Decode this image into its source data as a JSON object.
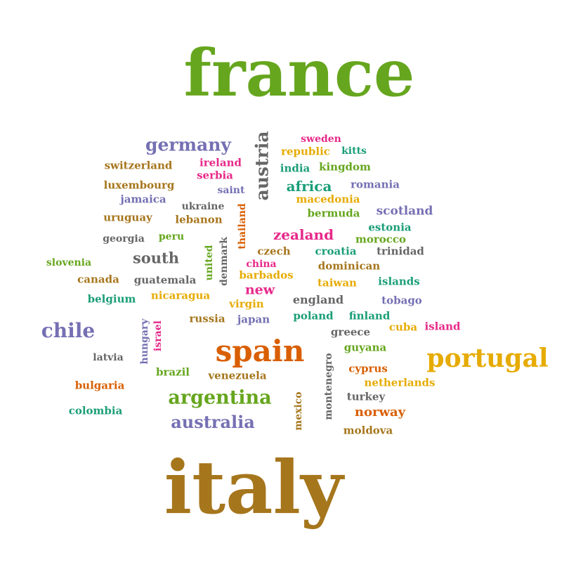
{
  "palette": {
    "green": "#66a61e",
    "olive": "#a6761d",
    "purple": "#7570b3",
    "orange": "#d95f02",
    "teal": "#1b9e77",
    "magenta": "#e7298a",
    "gold": "#e6ab02",
    "gray": "#666666"
  },
  "words": [
    {
      "text": "france",
      "color": "green"
    },
    {
      "text": "italy",
      "color": "olive"
    },
    {
      "text": "spain",
      "color": "orange"
    },
    {
      "text": "portugal",
      "color": "gold"
    },
    {
      "text": "germany",
      "color": "purple"
    },
    {
      "text": "austria",
      "color": "gray"
    },
    {
      "text": "argentina",
      "color": "green"
    },
    {
      "text": "australia",
      "color": "purple"
    },
    {
      "text": "chile",
      "color": "purple"
    },
    {
      "text": "sweden",
      "color": "magenta"
    },
    {
      "text": "republic",
      "color": "gold"
    },
    {
      "text": "kitts",
      "color": "teal"
    },
    {
      "text": "switzerland",
      "color": "olive"
    },
    {
      "text": "ireland",
      "color": "magenta"
    },
    {
      "text": "serbia",
      "color": "magenta"
    },
    {
      "text": "india",
      "color": "teal"
    },
    {
      "text": "kingdom",
      "color": "green"
    },
    {
      "text": "luxembourg",
      "color": "olive"
    },
    {
      "text": "saint",
      "color": "purple"
    },
    {
      "text": "africa",
      "color": "teal"
    },
    {
      "text": "romania",
      "color": "purple"
    },
    {
      "text": "jamaica",
      "color": "purple"
    },
    {
      "text": "macedonia",
      "color": "gold"
    },
    {
      "text": "ukraine",
      "color": "gray"
    },
    {
      "text": "bermuda",
      "color": "green"
    },
    {
      "text": "scotland",
      "color": "purple"
    },
    {
      "text": "uruguay",
      "color": "olive"
    },
    {
      "text": "lebanon",
      "color": "olive"
    },
    {
      "text": "thailand",
      "color": "orange"
    },
    {
      "text": "estonia",
      "color": "teal"
    },
    {
      "text": "zealand",
      "color": "magenta"
    },
    {
      "text": "georgia",
      "color": "gray"
    },
    {
      "text": "peru",
      "color": "green"
    },
    {
      "text": "denmark",
      "color": "gray"
    },
    {
      "text": "morocco",
      "color": "green"
    },
    {
      "text": "united",
      "color": "green"
    },
    {
      "text": "czech",
      "color": "olive"
    },
    {
      "text": "croatia",
      "color": "teal"
    },
    {
      "text": "trinidad",
      "color": "gray"
    },
    {
      "text": "south",
      "color": "gray"
    },
    {
      "text": "china",
      "color": "magenta"
    },
    {
      "text": "slovenia",
      "color": "green"
    },
    {
      "text": "dominican",
      "color": "olive"
    },
    {
      "text": "barbados",
      "color": "gold"
    },
    {
      "text": "canada",
      "color": "olive"
    },
    {
      "text": "guatemala",
      "color": "gray"
    },
    {
      "text": "new",
      "color": "magenta"
    },
    {
      "text": "taiwan",
      "color": "gold"
    },
    {
      "text": "islands",
      "color": "teal"
    },
    {
      "text": "nicaragua",
      "color": "gold"
    },
    {
      "text": "belgium",
      "color": "teal"
    },
    {
      "text": "virgin",
      "color": "gold"
    },
    {
      "text": "england",
      "color": "gray"
    },
    {
      "text": "tobago",
      "color": "purple"
    },
    {
      "text": "hungary",
      "color": "purple"
    },
    {
      "text": "israel",
      "color": "magenta"
    },
    {
      "text": "russia",
      "color": "olive"
    },
    {
      "text": "japan",
      "color": "purple"
    },
    {
      "text": "poland",
      "color": "teal"
    },
    {
      "text": "finland",
      "color": "teal"
    },
    {
      "text": "cuba",
      "color": "gold"
    },
    {
      "text": "island",
      "color": "magenta"
    },
    {
      "text": "greece",
      "color": "gray"
    },
    {
      "text": "guyana",
      "color": "green"
    },
    {
      "text": "latvia",
      "color": "gray"
    },
    {
      "text": "montenegro",
      "color": "gray"
    },
    {
      "text": "brazil",
      "color": "green"
    },
    {
      "text": "venezuela",
      "color": "olive"
    },
    {
      "text": "cyprus",
      "color": "orange"
    },
    {
      "text": "netherlands",
      "color": "gold"
    },
    {
      "text": "bulgaria",
      "color": "orange"
    },
    {
      "text": "mexico",
      "color": "olive"
    },
    {
      "text": "turkey",
      "color": "gray"
    },
    {
      "text": "colombia",
      "color": "teal"
    },
    {
      "text": "norway",
      "color": "orange"
    },
    {
      "text": "moldova",
      "color": "olive"
    }
  ]
}
